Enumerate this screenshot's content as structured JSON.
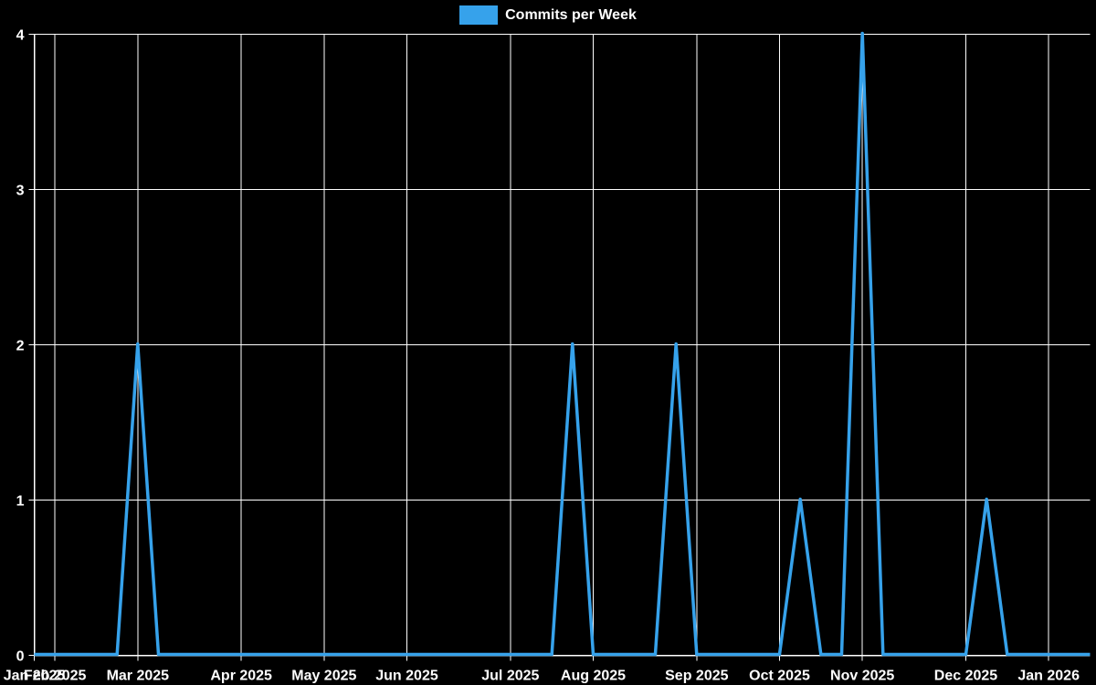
{
  "page": {
    "background_color": "#000000"
  },
  "legend": {
    "label": "Commits per Week",
    "swatch_color": "#36A2EB"
  },
  "chart_data": {
    "type": "line",
    "title": "",
    "xlabel": "",
    "ylabel": "",
    "grid": true,
    "legend_position": "top",
    "ylim": [
      0,
      4
    ],
    "y_ticks": [
      0,
      1,
      2,
      3,
      4
    ],
    "colors": {
      "line": "#36A2EB",
      "grid": "#ffffff",
      "axis": "#ffffff",
      "text": "#ffffff",
      "background": "#000000"
    },
    "x": [
      "2025-01-26",
      "2025-02-02",
      "2025-02-09",
      "2025-02-16",
      "2025-02-23",
      "2025-03-02",
      "2025-03-09",
      "2025-03-16",
      "2025-03-23",
      "2025-03-30",
      "2025-04-06",
      "2025-04-13",
      "2025-04-20",
      "2025-04-27",
      "2025-05-04",
      "2025-05-11",
      "2025-05-18",
      "2025-05-25",
      "2025-06-01",
      "2025-06-08",
      "2025-06-15",
      "2025-06-22",
      "2025-06-29",
      "2025-07-06",
      "2025-07-13",
      "2025-07-20",
      "2025-07-27",
      "2025-08-03",
      "2025-08-10",
      "2025-08-17",
      "2025-08-24",
      "2025-08-31",
      "2025-09-07",
      "2025-09-14",
      "2025-09-21",
      "2025-09-28",
      "2025-10-05",
      "2025-10-12",
      "2025-10-19",
      "2025-10-26",
      "2025-11-02",
      "2025-11-09",
      "2025-11-16",
      "2025-11-23",
      "2025-11-30",
      "2025-12-07",
      "2025-12-14",
      "2025-12-21",
      "2025-12-28",
      "2026-01-04",
      "2026-01-11",
      "2026-01-18"
    ],
    "series": [
      {
        "name": "Commits per Week",
        "color": "#36A2EB",
        "values": [
          0,
          0,
          0,
          0,
          0,
          2,
          0,
          0,
          0,
          0,
          0,
          0,
          0,
          0,
          0,
          0,
          0,
          0,
          0,
          0,
          0,
          0,
          0,
          0,
          0,
          0,
          2,
          0,
          0,
          0,
          0,
          2,
          0,
          0,
          0,
          0,
          0,
          1,
          0,
          0,
          4,
          0,
          0,
          0,
          0,
          0,
          1,
          0,
          0,
          0,
          0,
          0
        ]
      }
    ],
    "x_ticks": [
      {
        "index": 0,
        "label": "Jan 2025"
      },
      {
        "index": 1,
        "label": "Feb 2025"
      },
      {
        "index": 5,
        "label": "Mar 2025"
      },
      {
        "index": 10,
        "label": "Apr 2025"
      },
      {
        "index": 14,
        "label": "May 2025"
      },
      {
        "index": 18,
        "label": "Jun 2025"
      },
      {
        "index": 23,
        "label": "Jul 2025"
      },
      {
        "index": 27,
        "label": "Aug 2025"
      },
      {
        "index": 32,
        "label": "Sep 2025"
      },
      {
        "index": 36,
        "label": "Oct 2025"
      },
      {
        "index": 40,
        "label": "Nov 2025"
      },
      {
        "index": 45,
        "label": "Dec 2025"
      },
      {
        "index": 49,
        "label": "Jan 2026"
      }
    ]
  }
}
